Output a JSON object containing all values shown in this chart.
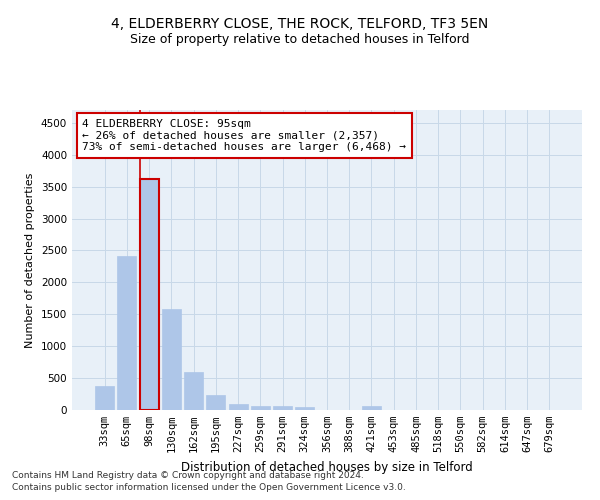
{
  "title1": "4, ELDERBERRY CLOSE, THE ROCK, TELFORD, TF3 5EN",
  "title2": "Size of property relative to detached houses in Telford",
  "xlabel": "Distribution of detached houses by size in Telford",
  "ylabel": "Number of detached properties",
  "categories": [
    "33sqm",
    "65sqm",
    "98sqm",
    "130sqm",
    "162sqm",
    "195sqm",
    "227sqm",
    "259sqm",
    "291sqm",
    "324sqm",
    "356sqm",
    "388sqm",
    "421sqm",
    "453sqm",
    "485sqm",
    "518sqm",
    "550sqm",
    "582sqm",
    "614sqm",
    "647sqm",
    "679sqm"
  ],
  "values": [
    380,
    2420,
    3620,
    1580,
    600,
    240,
    100,
    65,
    55,
    45,
    0,
    0,
    65,
    0,
    0,
    0,
    0,
    0,
    0,
    0,
    0
  ],
  "bar_color": "#aec6e8",
  "bar_edge_color": "#aec6e8",
  "highlight_bar_index": 2,
  "highlight_line_color": "#cc0000",
  "ylim": [
    0,
    4700
  ],
  "yticks": [
    0,
    500,
    1000,
    1500,
    2000,
    2500,
    3000,
    3500,
    4000,
    4500
  ],
  "grid_color": "#c8d8e8",
  "bg_color": "#e8f0f8",
  "annotation_title": "4 ELDERBERRY CLOSE: 95sqm",
  "annotation_line1": "← 26% of detached houses are smaller (2,357)",
  "annotation_line2": "73% of semi-detached houses are larger (6,468) →",
  "annotation_box_color": "#cc0000",
  "footer1": "Contains HM Land Registry data © Crown copyright and database right 2024.",
  "footer2": "Contains public sector information licensed under the Open Government Licence v3.0.",
  "title1_fontsize": 10,
  "title2_fontsize": 9,
  "xlabel_fontsize": 8.5,
  "ylabel_fontsize": 8,
  "tick_fontsize": 7.5,
  "annotation_fontsize": 8,
  "footer_fontsize": 6.5
}
